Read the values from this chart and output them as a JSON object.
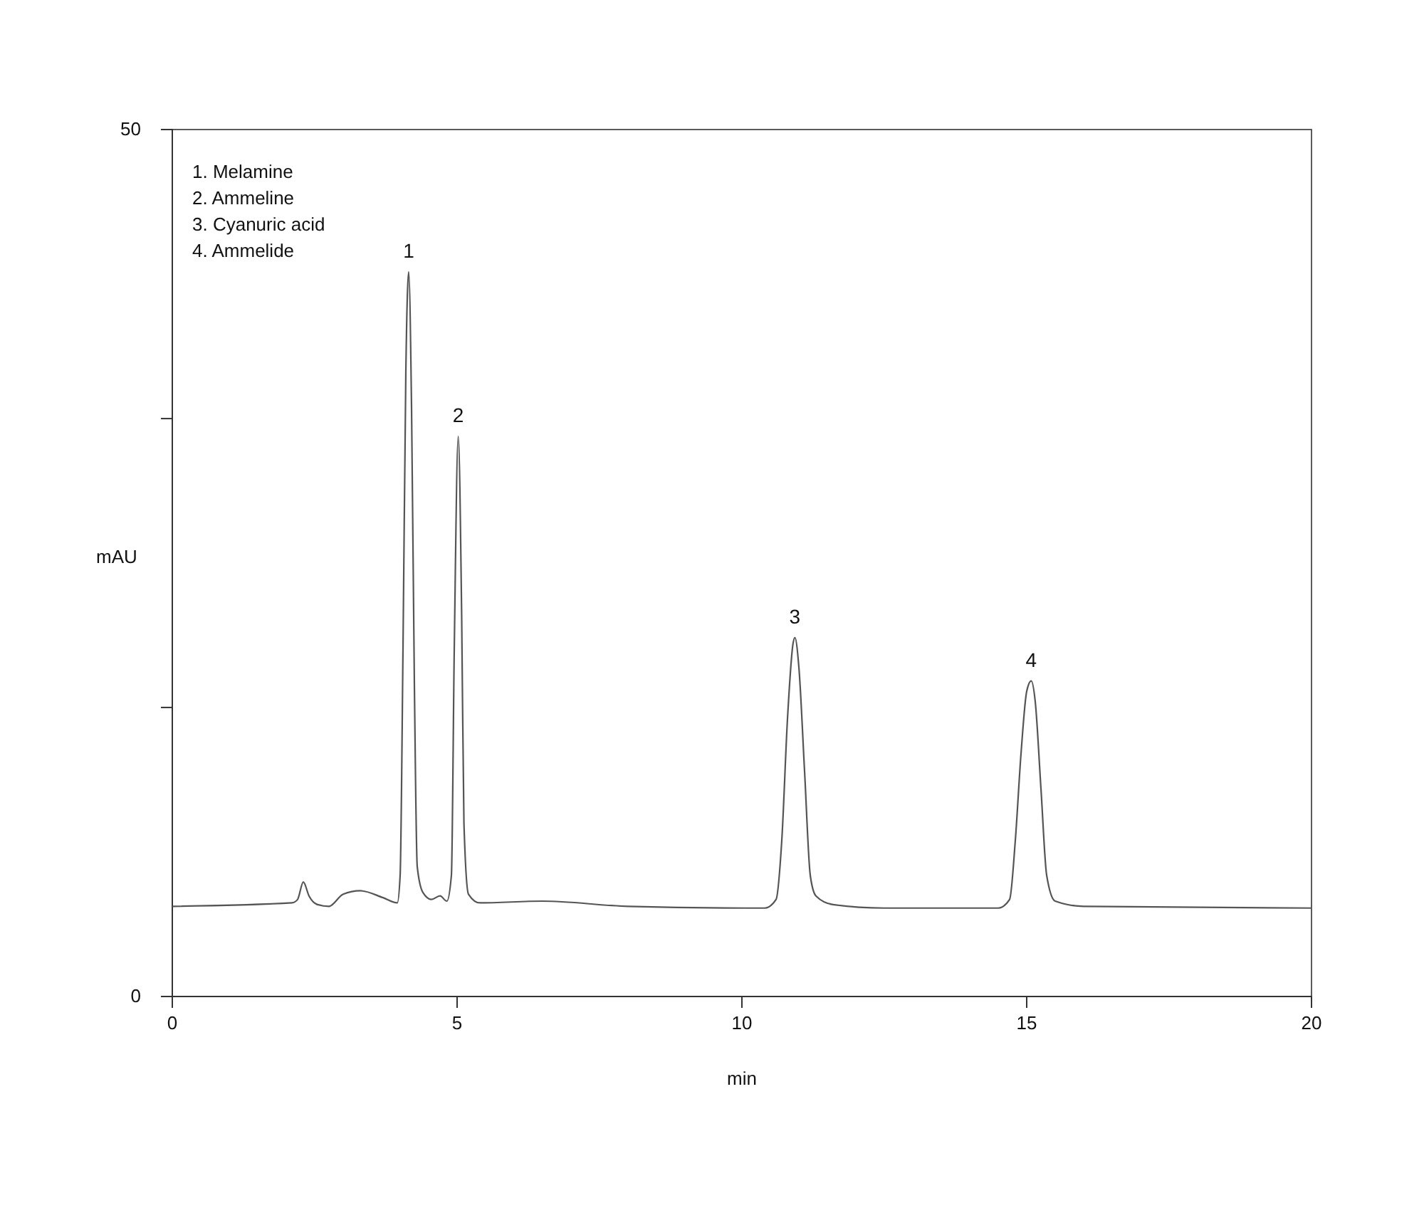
{
  "chart_data": {
    "type": "line",
    "xlabel": "min",
    "ylabel": "mAU",
    "xlim": [
      0,
      20
    ],
    "ylim": [
      0,
      50
    ],
    "xticks": [
      0,
      5,
      10,
      15,
      20
    ],
    "yticks": [
      0,
      {
        "value": 16.67,
        "label": null
      },
      {
        "value": 33.33,
        "label": null
      },
      50
    ],
    "grid": false,
    "marker": "none",
    "line_style": "solid",
    "series": [
      {
        "color": "#555555",
        "x": [
          0,
          2.1,
          2.2,
          2.3,
          2.4,
          2.55,
          2.75,
          3.0,
          3.3,
          3.7,
          3.95,
          4.0,
          4.05,
          4.1,
          4.15,
          4.2,
          4.25,
          4.3,
          4.4,
          4.55,
          4.7,
          4.82,
          4.9,
          4.95,
          5.02,
          5.08,
          5.12,
          5.2,
          5.4,
          6.5,
          8,
          10.4,
          10.6,
          10.7,
          10.8,
          10.9,
          10.93,
          11.0,
          11.1,
          11.2,
          11.3,
          11.6,
          12.5,
          14.5,
          14.7,
          14.8,
          14.9,
          15.0,
          15.08,
          15.15,
          15.25,
          15.35,
          15.5,
          16,
          20
        ],
        "values": [
          5.2,
          5.4,
          5.6,
          6.6,
          5.8,
          5.3,
          5.2,
          5.9,
          6.1,
          5.7,
          5.4,
          7,
          20,
          36,
          41.8,
          34,
          18,
          7.5,
          6.0,
          5.6,
          5.8,
          5.5,
          7,
          20,
          32.3,
          22,
          10,
          5.9,
          5.4,
          5.5,
          5.2,
          5.1,
          5.6,
          9,
          16,
          20.4,
          20.7,
          19,
          13,
          7,
          5.8,
          5.3,
          5.1,
          5.1,
          5.6,
          9,
          14,
          17.6,
          18.2,
          17,
          12,
          7,
          5.5,
          5.2,
          5.1
        ]
      }
    ],
    "annotations": [
      "1. Melamine",
      "2. Ammeline",
      "3. Cyanuric acid",
      "4. Ammelide",
      {
        "text": "1",
        "x": 4.15,
        "y": 41.8
      },
      {
        "text": "2",
        "x": 5.02,
        "y": 32.3
      },
      {
        "text": "3",
        "x": 10.93,
        "y": 20.7
      },
      {
        "text": "4",
        "x": 15.08,
        "y": 18.2
      }
    ]
  }
}
